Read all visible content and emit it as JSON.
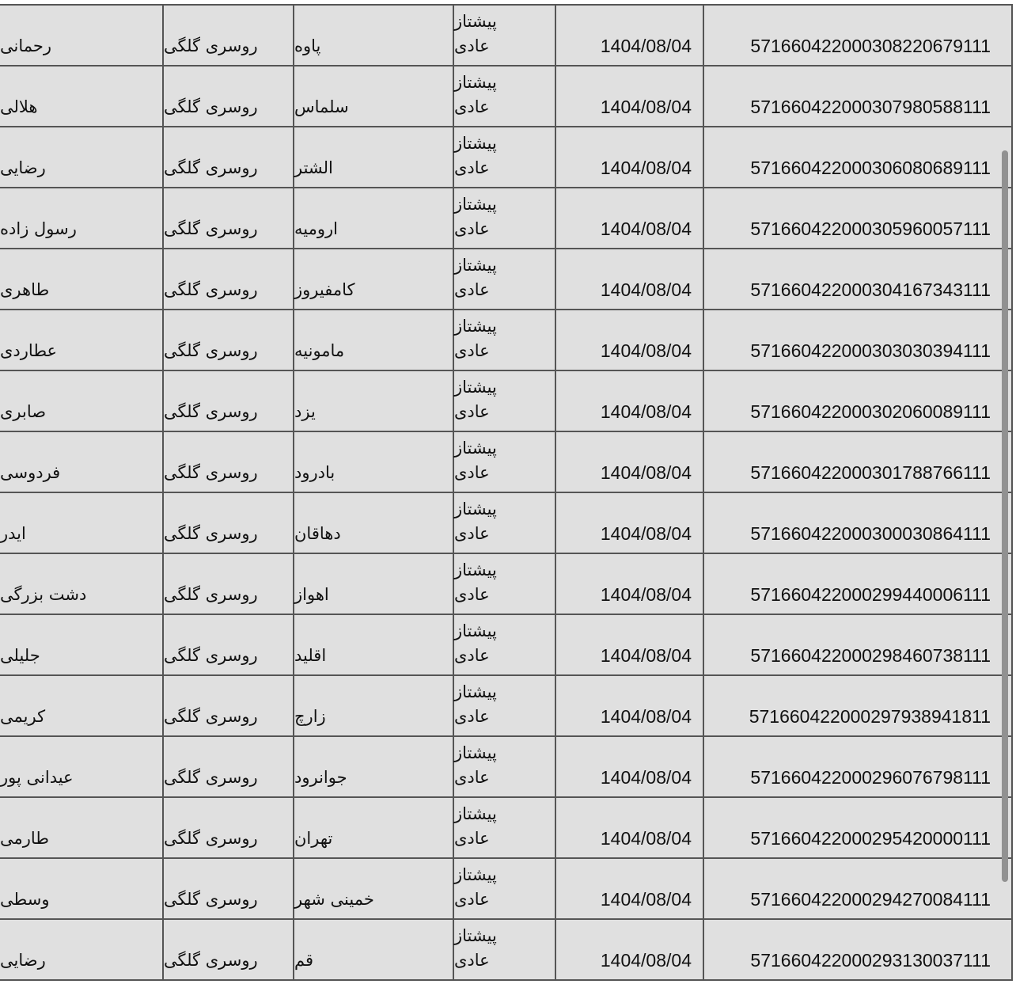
{
  "rows": [
    {
      "name": "رحمانی",
      "product": "روسری گلگی",
      "city": "پاوه",
      "service_line1": "پیشتاز",
      "service_line2": "عادی",
      "date": "1404/08/04",
      "tracking": "571660422000308220679111"
    },
    {
      "name": "هلالی",
      "product": "روسری گلگی",
      "city": "سلماس",
      "service_line1": "پیشتاز",
      "service_line2": "عادی",
      "date": "1404/08/04",
      "tracking": "571660422000307980588111"
    },
    {
      "name": "رضایی",
      "product": "روسری گلگی",
      "city": "الشتر",
      "service_line1": "پیشتاز",
      "service_line2": "عادی",
      "date": "1404/08/04",
      "tracking": "571660422000306080689111"
    },
    {
      "name": "رسول زاده",
      "product": "روسری گلگی",
      "city": "ارومیه",
      "service_line1": "پیشتاز",
      "service_line2": "عادی",
      "date": "1404/08/04",
      "tracking": "571660422000305960057111"
    },
    {
      "name": "طاهری",
      "product": "روسری گلگی",
      "city": "کامفیروز",
      "service_line1": "پیشتاز",
      "service_line2": "عادی",
      "date": "1404/08/04",
      "tracking": "571660422000304167343111"
    },
    {
      "name": "عطاردی",
      "product": "روسری گلگی",
      "city": "مامونیه",
      "service_line1": "پیشتاز",
      "service_line2": "عادی",
      "date": "1404/08/04",
      "tracking": "571660422000303030394111"
    },
    {
      "name": "صابری",
      "product": "روسری گلگی",
      "city": "یزد",
      "service_line1": "پیشتاز",
      "service_line2": "عادی",
      "date": "1404/08/04",
      "tracking": "571660422000302060089111"
    },
    {
      "name": "فردوسی",
      "product": "روسری گلگی",
      "city": "بادرود",
      "service_line1": "پیشتاز",
      "service_line2": "عادی",
      "date": "1404/08/04",
      "tracking": "571660422000301788766111"
    },
    {
      "name": "ایدر",
      "product": "روسری گلگی",
      "city": "دهاقان",
      "service_line1": "پیشتاز",
      "service_line2": "عادی",
      "date": "1404/08/04",
      "tracking": "571660422000300030864111"
    },
    {
      "name": "دشت بزرگی",
      "product": "روسری گلگی",
      "city": "اهواز",
      "service_line1": "پیشتاز",
      "service_line2": "عادی",
      "date": "1404/08/04",
      "tracking": "571660422000299440006111"
    },
    {
      "name": "جلیلی",
      "product": "روسری گلگی",
      "city": "اقلید",
      "service_line1": "پیشتاز",
      "service_line2": "عادی",
      "date": "1404/08/04",
      "tracking": "571660422000298460738111"
    },
    {
      "name": "کریمی",
      "product": "روسری گلگی",
      "city": "زارچ",
      "service_line1": "پیشتاز",
      "service_line2": "عادی",
      "date": "1404/08/04",
      "tracking": "571660422000297938941811"
    },
    {
      "name": "عیدانی پور",
      "product": "روسری گلگی",
      "city": "جوانرود",
      "service_line1": "پیشتاز",
      "service_line2": "عادی",
      "date": "1404/08/04",
      "tracking": "571660422000296076798111"
    },
    {
      "name": "طارمی",
      "product": "روسری گلگی",
      "city": "تهران",
      "service_line1": "پیشتاز",
      "service_line2": "عادی",
      "date": "1404/08/04",
      "tracking": "571660422000295420000111"
    },
    {
      "name": "وسطی",
      "product": "روسری گلگی",
      "city": "خمینی شهر",
      "service_line1": "پیشتاز",
      "service_line2": "عادی",
      "date": "1404/08/04",
      "tracking": "571660422000294270084111"
    },
    {
      "name": "رضایی",
      "product": "روسری گلگی",
      "city": "قم",
      "service_line1": "پیشتاز",
      "service_line2": "عادی",
      "date": "1404/08/04",
      "tracking": "571660422000293130037111"
    }
  ]
}
